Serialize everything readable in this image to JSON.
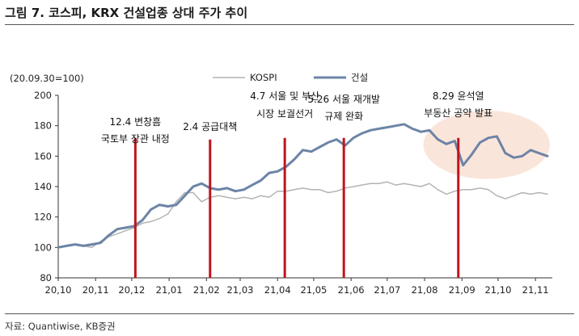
{
  "figure": {
    "title": "그림 7. 코스피, KRX 건설업종 상대 주가 추이",
    "source": "자료: Quantiwise, KB증권"
  },
  "chart_data": {
    "type": "line",
    "ylabel": "(20.09.30=100)",
    "ylim": [
      80,
      200
    ],
    "yticks": [
      80,
      100,
      120,
      140,
      160,
      180,
      200
    ],
    "xlim": [
      "2020-10-01",
      "2021-11-15"
    ],
    "x_ticks": [
      {
        "date": "2020-10-01",
        "label": "20,10"
      },
      {
        "date": "2020-11-01",
        "label": "20,11"
      },
      {
        "date": "2020-12-01",
        "label": "20,12"
      },
      {
        "date": "2021-01-01",
        "label": "21,01"
      },
      {
        "date": "2021-02-01",
        "label": "21,02"
      },
      {
        "date": "2021-03-01",
        "label": "21,03"
      },
      {
        "date": "2021-04-01",
        "label": "21,04"
      },
      {
        "date": "2021-05-01",
        "label": "21,05"
      },
      {
        "date": "2021-06-01",
        "label": "21,06"
      },
      {
        "date": "2021-07-01",
        "label": "21,07"
      },
      {
        "date": "2021-08-01",
        "label": "21,08"
      },
      {
        "date": "2021-09-01",
        "label": "21,09"
      },
      {
        "date": "2021-10-01",
        "label": "21,10"
      },
      {
        "date": "2021-11-01",
        "label": "21,11"
      }
    ],
    "legend_position": "top",
    "series": [
      {
        "name": "KOSPI",
        "color": "#b3b3b3",
        "width": 1.5,
        "points": [
          [
            "2020-10-01",
            100
          ],
          [
            "2020-10-08",
            101
          ],
          [
            "2020-10-15",
            102
          ],
          [
            "2020-10-22",
            101
          ],
          [
            "2020-10-29",
            100
          ],
          [
            "2020-11-05",
            104
          ],
          [
            "2020-11-12",
            107
          ],
          [
            "2020-11-19",
            109
          ],
          [
            "2020-11-26",
            111
          ],
          [
            "2020-12-03",
            113
          ],
          [
            "2020-12-10",
            116
          ],
          [
            "2020-12-17",
            117
          ],
          [
            "2020-12-24",
            119
          ],
          [
            "2020-12-31",
            122
          ],
          [
            "2021-01-07",
            130
          ],
          [
            "2021-01-14",
            136
          ],
          [
            "2021-01-21",
            136
          ],
          [
            "2021-01-28",
            130
          ],
          [
            "2021-02-04",
            133
          ],
          [
            "2021-02-11",
            134
          ],
          [
            "2021-02-18",
            133
          ],
          [
            "2021-02-25",
            132
          ],
          [
            "2021-03-04",
            133
          ],
          [
            "2021-03-11",
            132
          ],
          [
            "2021-03-18",
            134
          ],
          [
            "2021-03-25",
            133
          ],
          [
            "2021-04-01",
            137
          ],
          [
            "2021-04-08",
            137
          ],
          [
            "2021-04-15",
            138
          ],
          [
            "2021-04-22",
            139
          ],
          [
            "2021-04-29",
            138
          ],
          [
            "2021-05-06",
            138
          ],
          [
            "2021-05-13",
            136
          ],
          [
            "2021-05-20",
            137
          ],
          [
            "2021-05-27",
            139
          ],
          [
            "2021-06-03",
            140
          ],
          [
            "2021-06-10",
            141
          ],
          [
            "2021-06-17",
            142
          ],
          [
            "2021-06-24",
            142
          ],
          [
            "2021-07-01",
            143
          ],
          [
            "2021-07-08",
            141
          ],
          [
            "2021-07-15",
            142
          ],
          [
            "2021-07-22",
            141
          ],
          [
            "2021-07-29",
            140
          ],
          [
            "2021-08-05",
            142
          ],
          [
            "2021-08-12",
            138
          ],
          [
            "2021-08-19",
            135
          ],
          [
            "2021-08-26",
            137
          ],
          [
            "2021-09-02",
            138
          ],
          [
            "2021-09-09",
            138
          ],
          [
            "2021-09-16",
            139
          ],
          [
            "2021-09-23",
            138
          ],
          [
            "2021-09-30",
            134
          ],
          [
            "2021-10-07",
            132
          ],
          [
            "2021-10-14",
            134
          ],
          [
            "2021-10-21",
            136
          ],
          [
            "2021-10-28",
            135
          ],
          [
            "2021-11-04",
            136
          ],
          [
            "2021-11-11",
            135
          ]
        ]
      },
      {
        "name": "건설",
        "color": "#6c84a6",
        "width": 3,
        "points": [
          [
            "2020-10-01",
            100
          ],
          [
            "2020-10-08",
            101
          ],
          [
            "2020-10-15",
            102
          ],
          [
            "2020-10-22",
            101
          ],
          [
            "2020-10-29",
            102
          ],
          [
            "2020-11-05",
            103
          ],
          [
            "2020-11-12",
            108
          ],
          [
            "2020-11-19",
            112
          ],
          [
            "2020-11-26",
            113
          ],
          [
            "2020-12-03",
            114
          ],
          [
            "2020-12-10",
            118
          ],
          [
            "2020-12-17",
            125
          ],
          [
            "2020-12-24",
            128
          ],
          [
            "2020-12-31",
            127
          ],
          [
            "2021-01-07",
            128
          ],
          [
            "2021-01-14",
            134
          ],
          [
            "2021-01-21",
            140
          ],
          [
            "2021-01-28",
            142
          ],
          [
            "2021-02-04",
            139
          ],
          [
            "2021-02-11",
            138
          ],
          [
            "2021-02-18",
            139
          ],
          [
            "2021-02-25",
            137
          ],
          [
            "2021-03-04",
            138
          ],
          [
            "2021-03-11",
            141
          ],
          [
            "2021-03-18",
            144
          ],
          [
            "2021-03-25",
            149
          ],
          [
            "2021-04-01",
            150
          ],
          [
            "2021-04-08",
            153
          ],
          [
            "2021-04-15",
            158
          ],
          [
            "2021-04-22",
            164
          ],
          [
            "2021-04-29",
            163
          ],
          [
            "2021-05-06",
            166
          ],
          [
            "2021-05-13",
            169
          ],
          [
            "2021-05-20",
            171
          ],
          [
            "2021-05-27",
            167
          ],
          [
            "2021-06-03",
            172
          ],
          [
            "2021-06-10",
            175
          ],
          [
            "2021-06-17",
            177
          ],
          [
            "2021-06-24",
            178
          ],
          [
            "2021-07-01",
            179
          ],
          [
            "2021-07-08",
            180
          ],
          [
            "2021-07-15",
            181
          ],
          [
            "2021-07-22",
            178
          ],
          [
            "2021-07-29",
            176
          ],
          [
            "2021-08-05",
            177
          ],
          [
            "2021-08-12",
            171
          ],
          [
            "2021-08-19",
            168
          ],
          [
            "2021-08-26",
            170
          ],
          [
            "2021-09-02",
            154
          ],
          [
            "2021-09-09",
            161
          ],
          [
            "2021-09-16",
            169
          ],
          [
            "2021-09-23",
            172
          ],
          [
            "2021-09-30",
            173
          ],
          [
            "2021-10-07",
            162
          ],
          [
            "2021-10-14",
            159
          ],
          [
            "2021-10-21",
            160
          ],
          [
            "2021-10-28",
            164
          ],
          [
            "2021-11-04",
            162
          ],
          [
            "2021-11-11",
            160
          ]
        ]
      }
    ],
    "events": [
      {
        "date": "2020-12-04",
        "lines": [
          "12.4 변창흠",
          "국토부 장관 내정"
        ]
      },
      {
        "date": "2021-02-04",
        "lines": [
          "2.4 공급대책"
        ]
      },
      {
        "date": "2021-04-07",
        "lines": [
          "4.7 서울 및 부산",
          "시장 보궐선거"
        ]
      },
      {
        "date": "2021-05-26",
        "lines": [
          "5.26 서울 재개발",
          "규제 완화"
        ]
      },
      {
        "date": "2021-08-29",
        "lines": [
          "8.29 윤석열",
          "부동산 공약 발표"
        ]
      }
    ],
    "event_color": "#c0141c",
    "highlight": {
      "x_start": "2021-07-31",
      "x_end": "2021-11-13",
      "y_min": 145,
      "y_max": 190,
      "color": "#f9e0d3"
    }
  }
}
